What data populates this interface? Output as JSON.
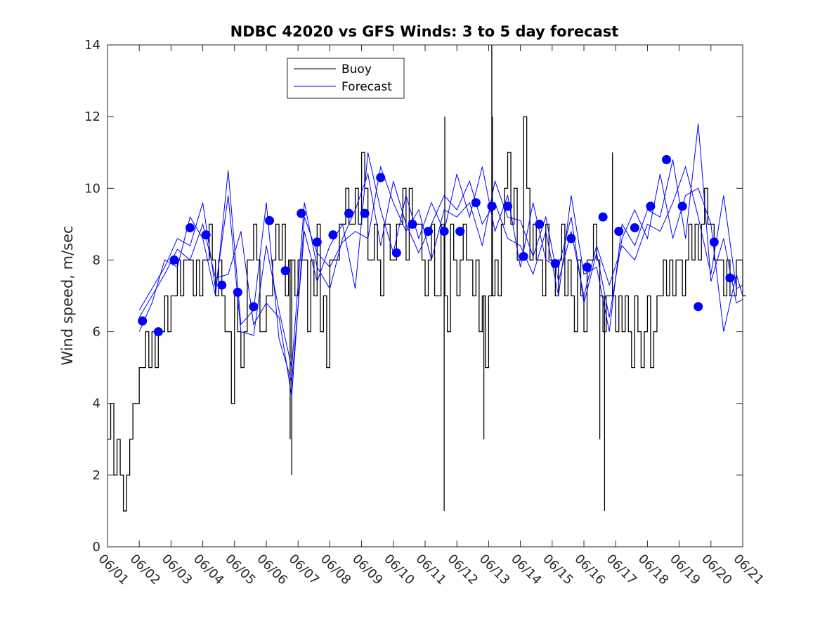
{
  "chart_data": {
    "type": "line",
    "title": "NDBC 42020 vs GFS Winds: 3 to 5 day forecast",
    "xlabel": "",
    "ylabel": "Wind speed, m/sec",
    "xlim": [
      0,
      20
    ],
    "ylim": [
      0,
      14
    ],
    "x_tick_labels": [
      "06/01",
      "06/02",
      "06/03",
      "06/04",
      "06/05",
      "06/06",
      "06/07",
      "06/08",
      "06/09",
      "06/10",
      "06/11",
      "06/12",
      "06/13",
      "06/14",
      "06/15",
      "06/16",
      "06/17",
      "06/18",
      "06/19",
      "06/20",
      "06/21"
    ],
    "y_ticks": [
      0,
      2,
      4,
      6,
      8,
      10,
      12,
      14
    ],
    "legend": {
      "position": "top-center-left",
      "entries": [
        "Buoy",
        "Forecast"
      ]
    },
    "colors": {
      "buoy": "#000000",
      "forecast": "#0000ff",
      "markers": "#0000ff"
    },
    "series": [
      {
        "name": "Buoy",
        "style": "step-line",
        "x": [
          0.0,
          0.1,
          0.2,
          0.3,
          0.4,
          0.5,
          0.6,
          0.7,
          0.8,
          0.9,
          1.0,
          1.1,
          1.2,
          1.3,
          1.4,
          1.5,
          1.6,
          1.7,
          1.8,
          1.9,
          2.0,
          2.1,
          2.2,
          2.3,
          2.4,
          2.5,
          2.6,
          2.7,
          2.8,
          2.9,
          3.0,
          3.1,
          3.2,
          3.3,
          3.4,
          3.5,
          3.6,
          3.7,
          3.8,
          3.9,
          4.0,
          4.1,
          4.2,
          4.3,
          4.4,
          4.5,
          4.6,
          4.7,
          4.8,
          4.9,
          5.0,
          5.1,
          5.2,
          5.3,
          5.4,
          5.5,
          5.6,
          5.7,
          5.8,
          5.9,
          6.0,
          6.1,
          6.2,
          6.3,
          6.4,
          6.5,
          6.6,
          6.7,
          6.8,
          6.9,
          7.0,
          7.1,
          7.2,
          7.3,
          7.4,
          7.5,
          7.6,
          7.7,
          7.8,
          7.9,
          8.0,
          8.1,
          8.2,
          8.3,
          8.4,
          8.5,
          8.6,
          8.7,
          8.8,
          8.9,
          9.0,
          9.1,
          9.2,
          9.3,
          9.4,
          9.5,
          9.6,
          9.7,
          9.8,
          9.9,
          10.0,
          10.1,
          10.2,
          10.3,
          10.4,
          10.5,
          10.6,
          10.7,
          10.8,
          10.9,
          11.0,
          11.1,
          11.2,
          11.3,
          11.4,
          11.5,
          11.6,
          11.7,
          11.8,
          11.9,
          12.0,
          12.1,
          12.2,
          12.3,
          12.4,
          12.5,
          12.6,
          12.7,
          12.8,
          12.9,
          13.0,
          13.1,
          13.2,
          13.3,
          13.4,
          13.5,
          13.6,
          13.7,
          13.8,
          13.9,
          14.0,
          14.1,
          14.2,
          14.3,
          14.4,
          14.5,
          14.6,
          14.7,
          14.8,
          14.9,
          15.0,
          15.1,
          15.2,
          15.3,
          15.4,
          15.5,
          15.6,
          15.7,
          15.8,
          15.9,
          16.0,
          16.1,
          16.2,
          16.3,
          16.4,
          16.5,
          16.6,
          16.7,
          16.8,
          16.9,
          17.0,
          17.1,
          17.2,
          17.3,
          17.4,
          17.5,
          17.6,
          17.7,
          17.8,
          17.9,
          18.0,
          18.1,
          18.2,
          18.3,
          18.4,
          18.5,
          18.6,
          18.7,
          18.8,
          18.9,
          19.0,
          19.1,
          19.2,
          19.3,
          19.4,
          19.5,
          19.6,
          19.7,
          19.8,
          19.9,
          20.0
        ],
        "y": [
          3,
          4,
          2,
          3,
          2,
          1,
          2,
          3,
          4,
          4,
          5,
          5,
          6,
          5,
          6,
          5,
          6,
          6,
          7,
          6,
          7,
          7,
          8,
          7,
          8,
          8,
          8,
          7,
          8,
          7,
          8,
          8,
          9,
          8,
          7,
          8,
          7,
          6,
          6,
          4,
          7,
          6,
          5,
          6,
          8,
          8,
          9,
          8,
          6,
          6,
          7,
          7,
          8,
          9,
          8,
          9,
          7,
          8,
          8,
          7,
          8,
          8,
          8,
          6,
          8,
          7,
          9,
          6,
          7,
          5,
          8,
          8,
          8,
          9,
          9,
          10,
          9,
          9,
          10,
          9,
          11,
          10,
          8,
          8,
          9,
          8,
          7,
          9,
          9,
          8,
          8,
          9,
          9,
          10,
          8,
          10,
          9,
          9,
          9,
          8,
          7,
          8,
          9,
          7,
          7,
          9,
          7,
          6,
          9,
          8,
          7,
          8,
          9,
          8,
          8,
          7,
          8,
          6,
          7,
          5,
          7,
          7,
          8,
          7,
          9,
          10,
          11,
          9,
          10,
          8,
          8,
          12,
          10,
          8,
          9,
          8,
          8,
          7,
          9,
          8,
          8,
          7,
          8,
          9,
          7,
          8,
          7,
          6,
          8,
          7,
          6,
          8,
          8,
          9,
          8,
          7,
          6,
          7,
          7,
          7,
          6,
          7,
          6,
          7,
          6,
          5,
          7,
          6,
          5,
          6,
          7,
          5,
          6,
          7,
          7,
          8,
          7,
          8,
          7,
          8,
          8,
          7,
          8,
          9,
          8,
          9,
          8,
          9,
          10,
          9,
          9,
          8,
          8,
          8,
          7,
          8,
          7,
          7,
          8,
          8,
          7
        ],
        "spikes": [
          {
            "x": 0.52,
            "y": 1
          },
          {
            "x": 5.8,
            "y": 2
          },
          {
            "x": 5.75,
            "y": 3
          },
          {
            "x": 10.6,
            "y": 1
          },
          {
            "x": 10.62,
            "y": 12
          },
          {
            "x": 11.85,
            "y": 3
          },
          {
            "x": 12.1,
            "y": 14
          },
          {
            "x": 12.12,
            "y": 12
          },
          {
            "x": 15.65,
            "y": 1
          },
          {
            "x": 15.9,
            "y": 11
          },
          {
            "x": 15.5,
            "y": 3
          }
        ]
      },
      {
        "name": "Forecast",
        "style": "line",
        "traces": [
          {
            "x": [
              1.0,
              1.4,
              1.8,
              2.2,
              2.6,
              3.0,
              3.4,
              3.8,
              4.2,
              4.6,
              5.0,
              5.4,
              5.8,
              6.2,
              6.6,
              7.0,
              7.4,
              7.8,
              8.2,
              8.6,
              9.0,
              9.4,
              9.8,
              10.2,
              10.6,
              11.0,
              11.4,
              11.8,
              12.2,
              12.6,
              13.0,
              13.4,
              13.8,
              14.2,
              14.6,
              15.0,
              15.4,
              15.8,
              16.2,
              16.6,
              17.0,
              17.4,
              17.8,
              18.2,
              18.6,
              19.0,
              19.4,
              19.8,
              20.0
            ],
            "y": [
              6.4,
              7.0,
              7.6,
              8.3,
              8.0,
              9.0,
              7.5,
              7.6,
              8.8,
              6.2,
              6.8,
              6.4,
              4.2,
              9.2,
              8.2,
              7.8,
              8.5,
              8.8,
              8.6,
              10.6,
              9.6,
              8.8,
              9.4,
              8.0,
              9.4,
              9.2,
              9.6,
              8.4,
              10.2,
              9.2,
              9.1,
              8.1,
              9.2,
              7.4,
              8.8,
              7.0,
              8.4,
              7.3,
              8.4,
              8.0,
              9.0,
              8.8,
              9.6,
              10.6,
              9.2,
              7.6,
              9.8,
              7.2,
              7.3
            ]
          },
          {
            "x": [
              1.0,
              1.4,
              1.8,
              2.2,
              2.6,
              3.0,
              3.4,
              3.8,
              4.2,
              4.6,
              5.0,
              5.4,
              5.8,
              6.2,
              6.6,
              7.0,
              7.4,
              7.8,
              8.2,
              8.6,
              9.0,
              9.4,
              9.8,
              10.2,
              10.6,
              11.0,
              11.4,
              11.8,
              12.2,
              12.6,
              13.0,
              13.4,
              13.8,
              14.2,
              14.6,
              15.0,
              15.4,
              15.8,
              16.2,
              16.6,
              17.0,
              17.4,
              17.8,
              18.2,
              18.6,
              19.0,
              19.4,
              19.8,
              20.0
            ],
            "y": [
              6.0,
              6.8,
              8.0,
              7.8,
              9.2,
              8.6,
              7.0,
              10.5,
              6.2,
              6.6,
              9.6,
              5.8,
              4.6,
              8.8,
              7.4,
              8.4,
              9.0,
              7.2,
              11.0,
              9.4,
              8.2,
              9.8,
              8.6,
              9.6,
              8.8,
              10.4,
              9.2,
              10.6,
              8.8,
              9.8,
              7.8,
              9.6,
              8.0,
              7.8,
              9.2,
              6.8,
              8.2,
              6.4,
              8.6,
              9.4,
              8.6,
              10.4,
              8.6,
              9.8,
              10.0,
              9.0,
              6.0,
              7.6,
              7.0
            ]
          },
          {
            "x": [
              1.0,
              1.4,
              1.8,
              2.2,
              2.6,
              3.0,
              3.4,
              3.8,
              4.2,
              4.6,
              5.0,
              5.4,
              5.8,
              6.2,
              6.6,
              7.0,
              7.4,
              7.8,
              8.2,
              8.6,
              9.0,
              9.4,
              9.8,
              10.2,
              10.6,
              11.0,
              11.4,
              11.8,
              12.2,
              12.6,
              13.0,
              13.4,
              13.8,
              14.2,
              14.6,
              15.0,
              15.4,
              15.8,
              16.2,
              16.6,
              17.0,
              17.4,
              17.8,
              18.2,
              18.6,
              19.0,
              19.4,
              19.8,
              20.0
            ],
            "y": [
              6.6,
              7.2,
              7.8,
              8.6,
              8.4,
              9.6,
              7.2,
              9.8,
              6.0,
              5.9,
              8.4,
              6.6,
              5.0,
              9.6,
              7.8,
              7.2,
              8.6,
              9.4,
              10.4,
              8.4,
              10.2,
              9.0,
              8.2,
              9.0,
              9.8,
              9.4,
              10.2,
              9.0,
              9.6,
              8.6,
              8.4,
              7.6,
              8.8,
              7.0,
              9.8,
              7.6,
              7.8,
              6.0,
              9.0,
              8.4,
              9.4,
              9.2,
              10.8,
              8.6,
              11.8,
              7.4,
              8.6,
              6.8,
              6.9
            ]
          }
        ]
      }
    ],
    "markers": {
      "name": "Forecast points",
      "x": [
        1.1,
        1.6,
        2.1,
        2.6,
        3.1,
        3.6,
        4.1,
        4.6,
        5.1,
        5.6,
        6.1,
        6.6,
        7.1,
        7.6,
        8.1,
        8.6,
        9.1,
        9.6,
        10.1,
        10.6,
        11.1,
        11.6,
        12.1,
        12.6,
        13.1,
        13.6,
        14.1,
        14.6,
        15.1,
        15.6,
        16.1,
        16.6,
        17.1,
        17.6,
        18.1,
        18.6,
        19.1,
        19.6
      ],
      "y": [
        6.3,
        6.0,
        8.0,
        8.9,
        8.7,
        7.3,
        7.1,
        6.7,
        9.1,
        7.7,
        9.3,
        8.5,
        8.7,
        9.3,
        9.3,
        10.3,
        8.2,
        9.0,
        8.8,
        8.8,
        8.8,
        9.6,
        9.5,
        9.5,
        8.1,
        9.0,
        7.9,
        8.6,
        7.8,
        9.2,
        8.8,
        8.9,
        9.5,
        10.8,
        9.5,
        6.7,
        8.5,
        7.5
      ]
    }
  }
}
